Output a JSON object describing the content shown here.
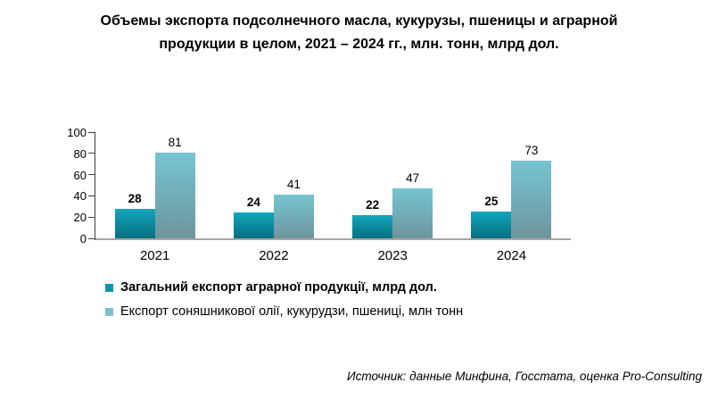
{
  "title_lines": [
    "Объемы экспорта подсолнечного масла, кукурузы, пшеницы и аграрной",
    "продукции в целом, 2021 – 2024 гг., млн. тонн, млрд дол."
  ],
  "chart_data": {
    "type": "bar",
    "title": "Объемы экспорта подсолнечного масла, кукурузы, пшеницы и аграрной продукции в целом, 2021 – 2024 гг., млн. тонн, млрд дол.",
    "categories": [
      "2021",
      "2022",
      "2023",
      "2024"
    ],
    "series": [
      {
        "name": "Загальний експорт аграрної продукції, млрд дол.",
        "values": [
          28,
          24,
          22,
          25
        ],
        "color_top": "#14A7BC",
        "color_bottom": "#046F80",
        "legend_color": "#0F93A8",
        "label_bold": true
      },
      {
        "name": "Експорт соняшникової олії, кукурудзи, пшениці, млн тонн",
        "values": [
          81,
          41,
          47,
          73
        ],
        "color_top": "#75C5D1",
        "color_bottom": "#6E959E",
        "legend_color": "#7FC0CA",
        "label_bold": false
      }
    ],
    "ylim": [
      0,
      100
    ],
    "yticks": [
      0,
      20,
      40,
      60,
      80,
      100
    ],
    "grid": false,
    "legend_position": "bottom-left",
    "axis_color": "#404040",
    "baseline_color": "#A6A6A6"
  },
  "source": "Источник: данные Минфина, Госстата, оценка Pro-Consulting"
}
